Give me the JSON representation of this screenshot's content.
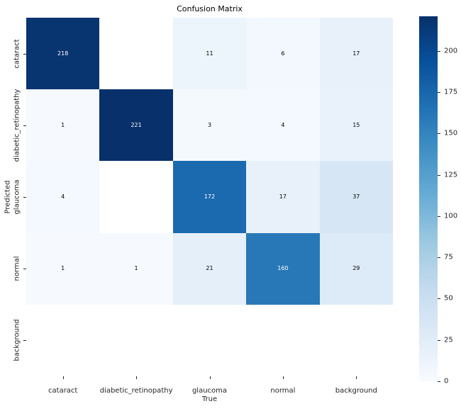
{
  "figure": {
    "title": "Confusion Matrix",
    "background": "#ffffff"
  },
  "chart_data": {
    "type": "heatmap",
    "title": "Confusion Matrix",
    "xlabel": "True",
    "ylabel": "Predicted",
    "x_categories": [
      "cataract",
      "diabetic_retinopathy",
      "glaucoma",
      "normal",
      "background"
    ],
    "y_categories": [
      "cataract",
      "diabetic_retinopathy",
      "glaucoma",
      "normal",
      "background"
    ],
    "values": [
      [
        218,
        null,
        11,
        6,
        17
      ],
      [
        1,
        221,
        3,
        4,
        15
      ],
      [
        4,
        null,
        172,
        17,
        37
      ],
      [
        1,
        1,
        21,
        160,
        29
      ],
      [
        null,
        null,
        null,
        null,
        null
      ]
    ],
    "cell_colors": [
      [
        "#083470",
        "#ffffff",
        "#edf5fc",
        "#f2f8fd",
        "#e8f1fa"
      ],
      [
        "#f6fafe",
        "#08306b",
        "#f4f9fe",
        "#f3f9fe",
        "#e9f2fb"
      ],
      [
        "#f3f9fe",
        "#ffffff",
        "#1b6aaf",
        "#e8f1fa",
        "#d6e6f4"
      ],
      [
        "#f6fafe",
        "#f6fafe",
        "#e4eff9",
        "#2878b8",
        "#ddeaf7"
      ],
      [
        "#ffffff",
        "#ffffff",
        "#ffffff",
        "#ffffff",
        "#ffffff"
      ]
    ],
    "annot_colors": [
      [
        "#ffffff",
        null,
        "#000000",
        "#000000",
        "#000000"
      ],
      [
        "#000000",
        "#ffffff",
        "#000000",
        "#000000",
        "#000000"
      ],
      [
        "#000000",
        null,
        "#ffffff",
        "#000000",
        "#000000"
      ],
      [
        "#000000",
        "#000000",
        "#000000",
        "#ffffff",
        "#000000"
      ],
      [
        null,
        null,
        null,
        null,
        null
      ]
    ],
    "colormap": "Blues",
    "grid": false,
    "legend_position": "colorbar-right",
    "colorbar": {
      "vmin": 0,
      "vmax": 221,
      "ticks": [
        0,
        25,
        50,
        75,
        100,
        125,
        150,
        175,
        200
      ],
      "gradient_stops": [
        "#f7fbff",
        "#deebf7",
        "#c6dbef",
        "#9ecae1",
        "#6baed6",
        "#4292c6",
        "#2171b5",
        "#08519c",
        "#08306b"
      ]
    }
  }
}
